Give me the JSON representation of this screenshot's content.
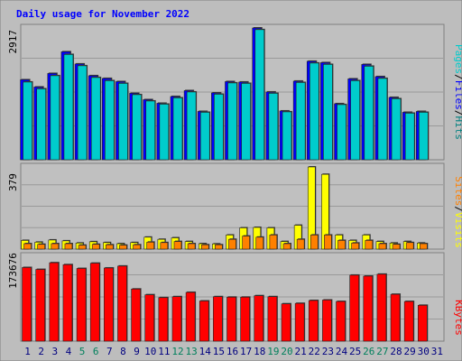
{
  "colors": {
    "frame": "#bdbdbd",
    "plot_bg": "#c0c0c0",
    "title": "#0000ff",
    "pages": "#00cccc",
    "files": "#0000ff",
    "hits": "#008080",
    "sites": "#ff8000",
    "visits": "#ffff00",
    "kbytes": "#ff0000",
    "weekend_day": "#00805c",
    "weekday_day": "#000080"
  },
  "chart_data": [
    {
      "type": "bar",
      "title": "Daily usage for November 2022",
      "x": [
        "1",
        "2",
        "3",
        "4",
        "5",
        "6",
        "7",
        "8",
        "9",
        "10",
        "11",
        "12",
        "13",
        "14",
        "15",
        "16",
        "17",
        "18",
        "19",
        "20",
        "21",
        "22",
        "23",
        "24",
        "25",
        "26",
        "27",
        "28",
        "29",
        "30",
        "31"
      ],
      "weekend_days": [
        "5",
        "6",
        "12",
        "13",
        "19",
        "20",
        "26",
        "27"
      ],
      "ymax_label": "2917",
      "ylim": [
        0,
        2917
      ],
      "ylabel_parts": [
        "Pages",
        "/",
        "Files",
        "/",
        "Hits"
      ],
      "series": [
        {
          "name": "Hits",
          "values": [
            1770,
            1610,
            1910,
            2390,
            2120,
            1860,
            1800,
            1730,
            1470,
            1330,
            1250,
            1400,
            1530,
            1070,
            1480,
            1730,
            1720,
            2917,
            1500,
            1080,
            1740,
            2180,
            2150,
            1240,
            1790,
            2110,
            1840,
            1380,
            1050,
            1070,
            null
          ]
        },
        {
          "name": "Files",
          "values": [
            1720,
            1570,
            1860,
            2330,
            2080,
            1820,
            1750,
            1690,
            1440,
            1300,
            1230,
            1370,
            1500,
            1050,
            1450,
            1700,
            1690,
            2880,
            1470,
            1060,
            1710,
            2140,
            2110,
            1220,
            1750,
            2070,
            1800,
            1350,
            1030,
            1050,
            null
          ]
        }
      ]
    },
    {
      "type": "bar",
      "ymax_label": "379",
      "ylim": [
        0,
        379
      ],
      "ylabel_parts": [
        "Sites",
        "/",
        "Visits"
      ],
      "series": [
        {
          "name": "Visits",
          "values": [
            40,
            32,
            42,
            38,
            28,
            34,
            30,
            25,
            30,
            55,
            45,
            52,
            35,
            25,
            24,
            65,
            98,
            100,
            98,
            35,
            110,
            379,
            345,
            65,
            40,
            65,
            35,
            28,
            35,
            28,
            null
          ]
        },
        {
          "name": "Sites",
          "values": [
            25,
            22,
            25,
            25,
            18,
            22,
            20,
            18,
            20,
            32,
            30,
            35,
            25,
            20,
            20,
            45,
            60,
            55,
            65,
            25,
            45,
            65,
            65,
            40,
            28,
            40,
            25,
            22,
            30,
            25,
            null
          ]
        }
      ]
    },
    {
      "type": "bar",
      "ymax_label": "173676",
      "ylim": [
        0,
        173676
      ],
      "ylabel_parts": [
        "KBytes"
      ],
      "series": [
        {
          "name": "KBytes",
          "values": [
            154000,
            150000,
            164000,
            160000,
            152000,
            163000,
            153000,
            157000,
            109000,
            97000,
            91000,
            93000,
            102000,
            84000,
            93000,
            92000,
            92000,
            95000,
            93000,
            78000,
            79000,
            85000,
            86000,
            83000,
            138000,
            136000,
            140000,
            98000,
            83000,
            75000,
            null
          ]
        }
      ]
    }
  ]
}
